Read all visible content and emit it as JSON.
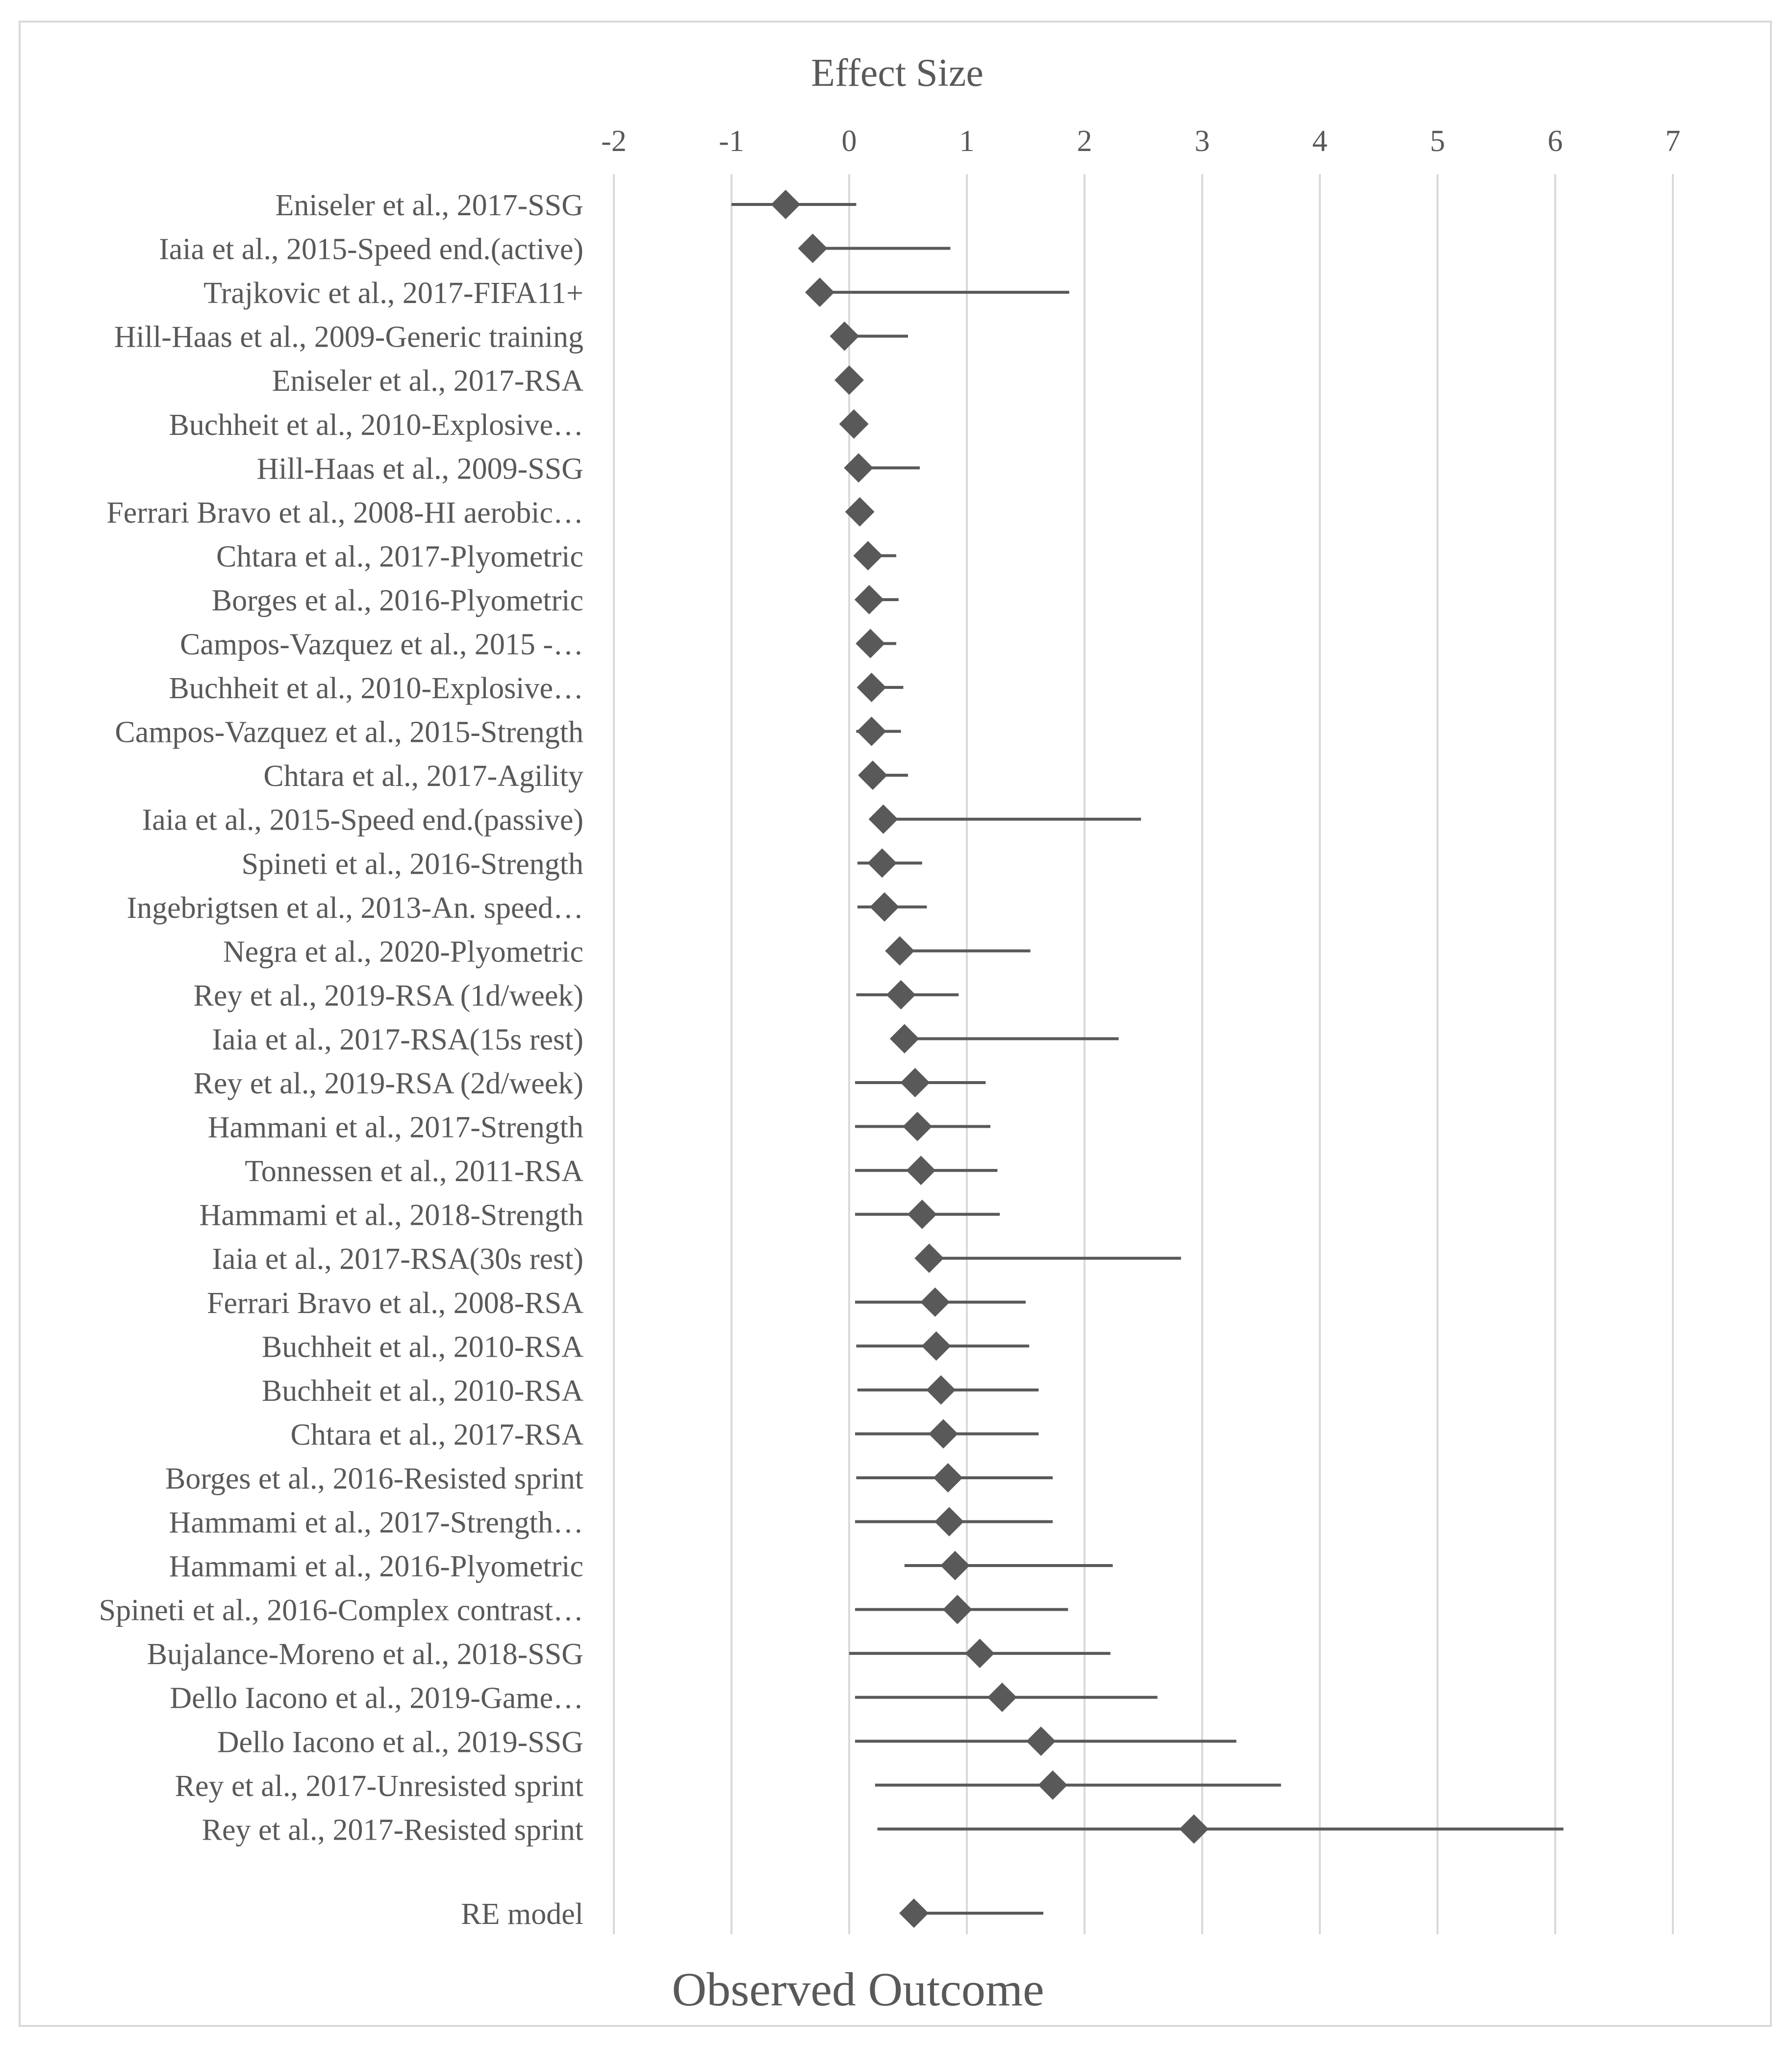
{
  "chart_data": {
    "type": "forest",
    "title": "Effect Size",
    "xlabel": "Observed Outcome",
    "xlim": [
      -2,
      7
    ],
    "xticks": [
      -2,
      -1,
      0,
      1,
      2,
      3,
      4,
      5,
      6,
      7
    ],
    "grid": "vertical",
    "colors": {
      "marker": "#595959",
      "grid": "#d9d9d9",
      "text": "#595959",
      "frame": "#d9d9d9"
    },
    "studies": [
      {
        "label": "Eniseler et al., 2017-SSG",
        "es": -0.54,
        "lo": -1.0,
        "hi": 0.06
      },
      {
        "label": "Iaia et al., 2015-Speed end.(active)",
        "es": -0.31,
        "lo": -0.31,
        "hi": 0.86
      },
      {
        "label": "Trajkovic et al., 2017-FIFA11+",
        "es": -0.25,
        "lo": -0.25,
        "hi": 1.87
      },
      {
        "label": "Hill-Haas et al., 2009-Generic training",
        "es": -0.04,
        "lo": -0.04,
        "hi": 0.5
      },
      {
        "label": "Eniseler et al., 2017-RSA",
        "es": 0.0,
        "lo": 0.0,
        "hi": 0.0
      },
      {
        "label": "Buchheit et al., 2010-Explosive…",
        "es": 0.04,
        "lo": 0.04,
        "hi": 0.04
      },
      {
        "label": "Hill-Haas et al., 2009-SSG",
        "es": 0.08,
        "lo": 0.08,
        "hi": 0.6
      },
      {
        "label": "Ferrari Bravo et al., 2008-HI aerobic…",
        "es": 0.09,
        "lo": 0.09,
        "hi": 0.09
      },
      {
        "label": "Chtara et al., 2017-Plyometric",
        "es": 0.16,
        "lo": 0.16,
        "hi": 0.4
      },
      {
        "label": "Borges et al., 2016-Plyometric",
        "es": 0.17,
        "lo": 0.17,
        "hi": 0.42
      },
      {
        "label": "Campos-Vazquez et al., 2015 -…",
        "es": 0.18,
        "lo": 0.18,
        "hi": 0.4
      },
      {
        "label": "Buchheit et al., 2010-Explosive…",
        "es": 0.19,
        "lo": 0.19,
        "hi": 0.46
      },
      {
        "label": "Campos-Vazquez et al., 2015-Strength",
        "es": 0.19,
        "lo": 0.06,
        "hi": 0.44
      },
      {
        "label": "Chtara et al., 2017-Agility",
        "es": 0.2,
        "lo": 0.2,
        "hi": 0.5
      },
      {
        "label": "Iaia et al., 2015-Speed end.(passive)",
        "es": 0.29,
        "lo": 0.29,
        "hi": 2.48
      },
      {
        "label": "Spineti et al., 2016-Strength",
        "es": 0.28,
        "lo": 0.07,
        "hi": 0.62
      },
      {
        "label": "Ingebrigtsen et al., 2013-An. speed…",
        "es": 0.3,
        "lo": 0.07,
        "hi": 0.66
      },
      {
        "label": "Negra et al., 2020-Plyometric",
        "es": 0.43,
        "lo": 0.43,
        "hi": 1.54
      },
      {
        "label": "Rey et al., 2019-RSA (1d/week)",
        "es": 0.44,
        "lo": 0.06,
        "hi": 0.93
      },
      {
        "label": "Iaia et al., 2017-RSA(15s rest)",
        "es": 0.47,
        "lo": 0.47,
        "hi": 2.29
      },
      {
        "label": "Rey et al., 2019-RSA (2d/week)",
        "es": 0.56,
        "lo": 0.05,
        "hi": 1.16
      },
      {
        "label": "Hammani et al., 2017-Strength",
        "es": 0.58,
        "lo": 0.05,
        "hi": 1.2
      },
      {
        "label": "Tonnessen et al., 2011-RSA",
        "es": 0.61,
        "lo": 0.05,
        "hi": 1.26
      },
      {
        "label": "Hammami et al., 2018-Strength",
        "es": 0.62,
        "lo": 0.05,
        "hi": 1.28
      },
      {
        "label": "Iaia et al., 2017-RSA(30s rest)",
        "es": 0.68,
        "lo": 0.68,
        "hi": 2.82
      },
      {
        "label": "Ferrari Bravo et al., 2008-RSA",
        "es": 0.73,
        "lo": 0.05,
        "hi": 1.5
      },
      {
        "label": "Buchheit et al., 2010-RSA",
        "es": 0.74,
        "lo": 0.06,
        "hi": 1.53
      },
      {
        "label": "Buchheit et al., 2010-RSA",
        "es": 0.78,
        "lo": 0.07,
        "hi": 1.61
      },
      {
        "label": "Chtara et al., 2017-RSA",
        "es": 0.8,
        "lo": 0.05,
        "hi": 1.61
      },
      {
        "label": "Borges et al., 2016-Resisted sprint",
        "es": 0.84,
        "lo": 0.06,
        "hi": 1.73
      },
      {
        "label": "Hammami et al., 2017-Strength…",
        "es": 0.85,
        "lo": 0.05,
        "hi": 1.73
      },
      {
        "label": "Hammami et al., 2016-Plyometric",
        "es": 0.9,
        "lo": 0.47,
        "hi": 2.24
      },
      {
        "label": "Spineti et al., 2016-Complex contrast…",
        "es": 0.92,
        "lo": 0.05,
        "hi": 1.86
      },
      {
        "label": "Bujalance-Moreno et al., 2018-SSG",
        "es": 1.11,
        "lo": 0.0,
        "hi": 2.22
      },
      {
        "label": "Dello Iacono et al., 2019-Game…",
        "es": 1.3,
        "lo": 0.05,
        "hi": 2.62
      },
      {
        "label": "Dello Iacono et al., 2019-SSG",
        "es": 1.63,
        "lo": 0.05,
        "hi": 3.29
      },
      {
        "label": "Rey et al., 2017-Unresisted sprint",
        "es": 1.73,
        "lo": 0.22,
        "hi": 3.67
      },
      {
        "label": "Rey et al., 2017-Resisted sprint",
        "es": 2.93,
        "lo": 0.24,
        "hi": 6.07
      }
    ],
    "summary": {
      "label": "RE model",
      "es": 0.55,
      "lo": 0.55,
      "hi": 1.65
    }
  }
}
